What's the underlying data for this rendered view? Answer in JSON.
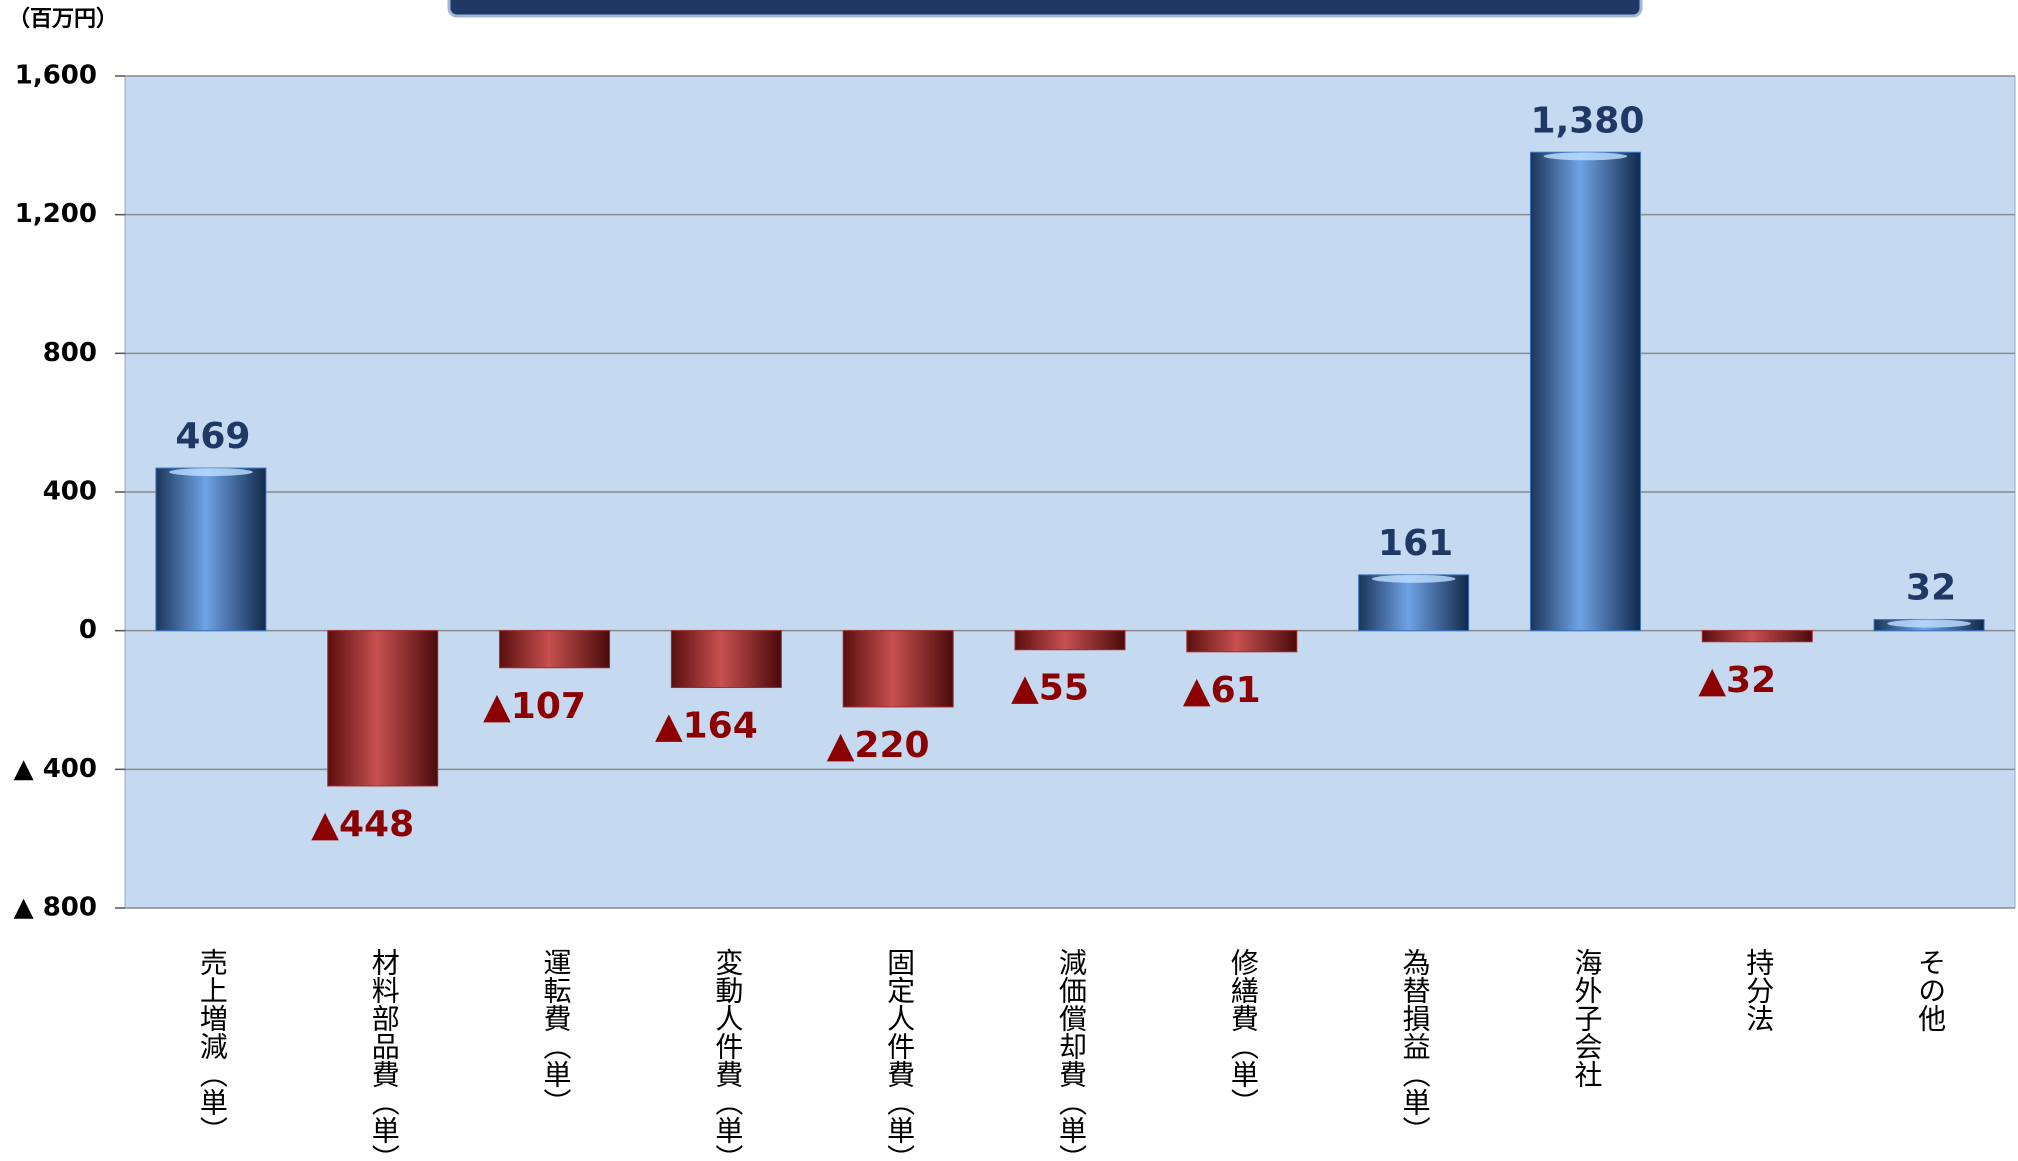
{
  "chart_data": {
    "type": "bar",
    "unit_label": "（百万円）",
    "categories": [
      "売上増減（単）",
      "材料部品費（単）",
      "運転費（単）",
      "変動人件費（単）",
      "固定人件費（単）",
      "減価償却費（単）",
      "修繕費（単）",
      "為替損益（単）",
      "海外子会社",
      "持分法",
      "その他"
    ],
    "values": [
      469,
      -448,
      -107,
      -164,
      -220,
      -55,
      -61,
      161,
      1380,
      -32,
      32
    ],
    "value_labels": [
      "469",
      "▲448",
      "▲107",
      "▲164",
      "▲220",
      "▲55",
      "▲61",
      "161",
      "1,380",
      "▲32",
      "32"
    ],
    "color": "#3d74bd",
    "negative_color": "#a52a2a",
    "ylim": [
      -800,
      1600
    ],
    "yticks": [
      {
        "value": 1600,
        "label": "1,600"
      },
      {
        "value": 1200,
        "label": "1,200"
      },
      800,
      400,
      0,
      {
        "value": -400,
        "label": "▲ 400"
      },
      {
        "value": -800,
        "label": "▲ 800"
      }
    ],
    "grid": true
  }
}
